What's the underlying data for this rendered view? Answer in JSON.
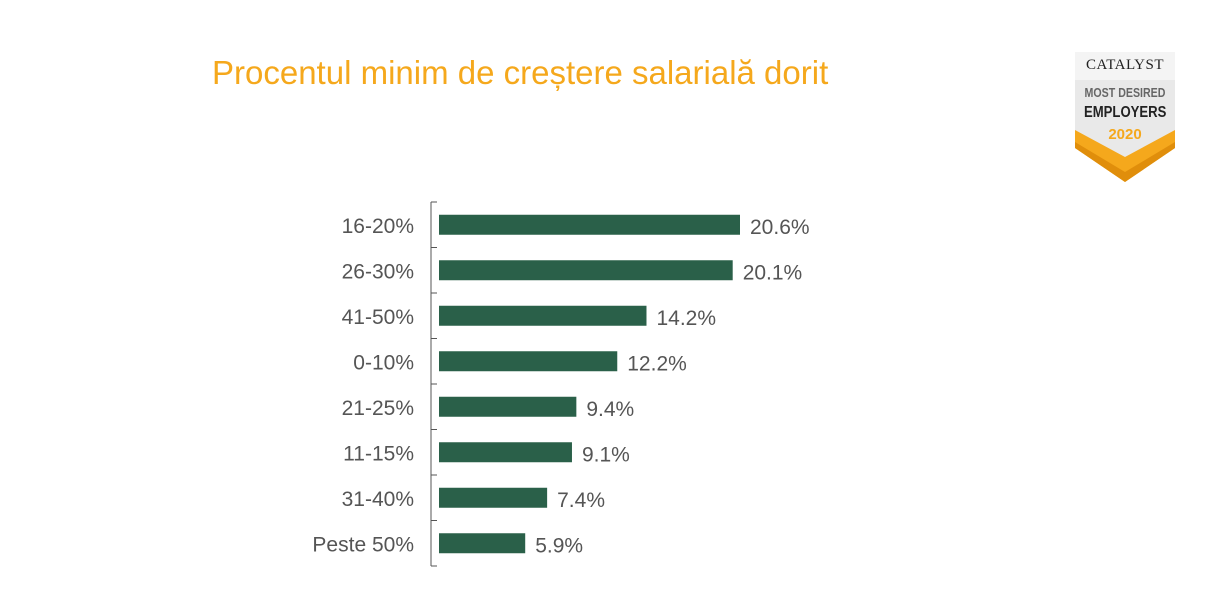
{
  "chart_data": {
    "type": "bar",
    "orientation": "horizontal",
    "title": "Procentul minim de creștere salarială dorit",
    "categories": [
      "16-20%",
      "26-30%",
      "41-50%",
      "0-10%",
      "21-25%",
      "11-15%",
      "31-40%",
      "Peste 50%"
    ],
    "values": [
      20.6,
      20.1,
      14.2,
      12.2,
      9.4,
      9.1,
      7.4,
      5.9
    ],
    "value_labels": [
      "20.6%",
      "20.1%",
      "14.2%",
      "12.2%",
      "9.4%",
      "9.1%",
      "7.4%",
      "5.9%"
    ],
    "xlim": [
      0,
      20.6
    ],
    "grid": false,
    "legend": "none",
    "bar_color": "#2a6049"
  },
  "logo": {
    "brand": "CATALYST",
    "line1": "MOST DESIRED",
    "line2": "EMPLOYERS",
    "year": "2020"
  },
  "colors": {
    "title": "#f5a81c",
    "label_text": "#555555",
    "axis": "#555555"
  }
}
